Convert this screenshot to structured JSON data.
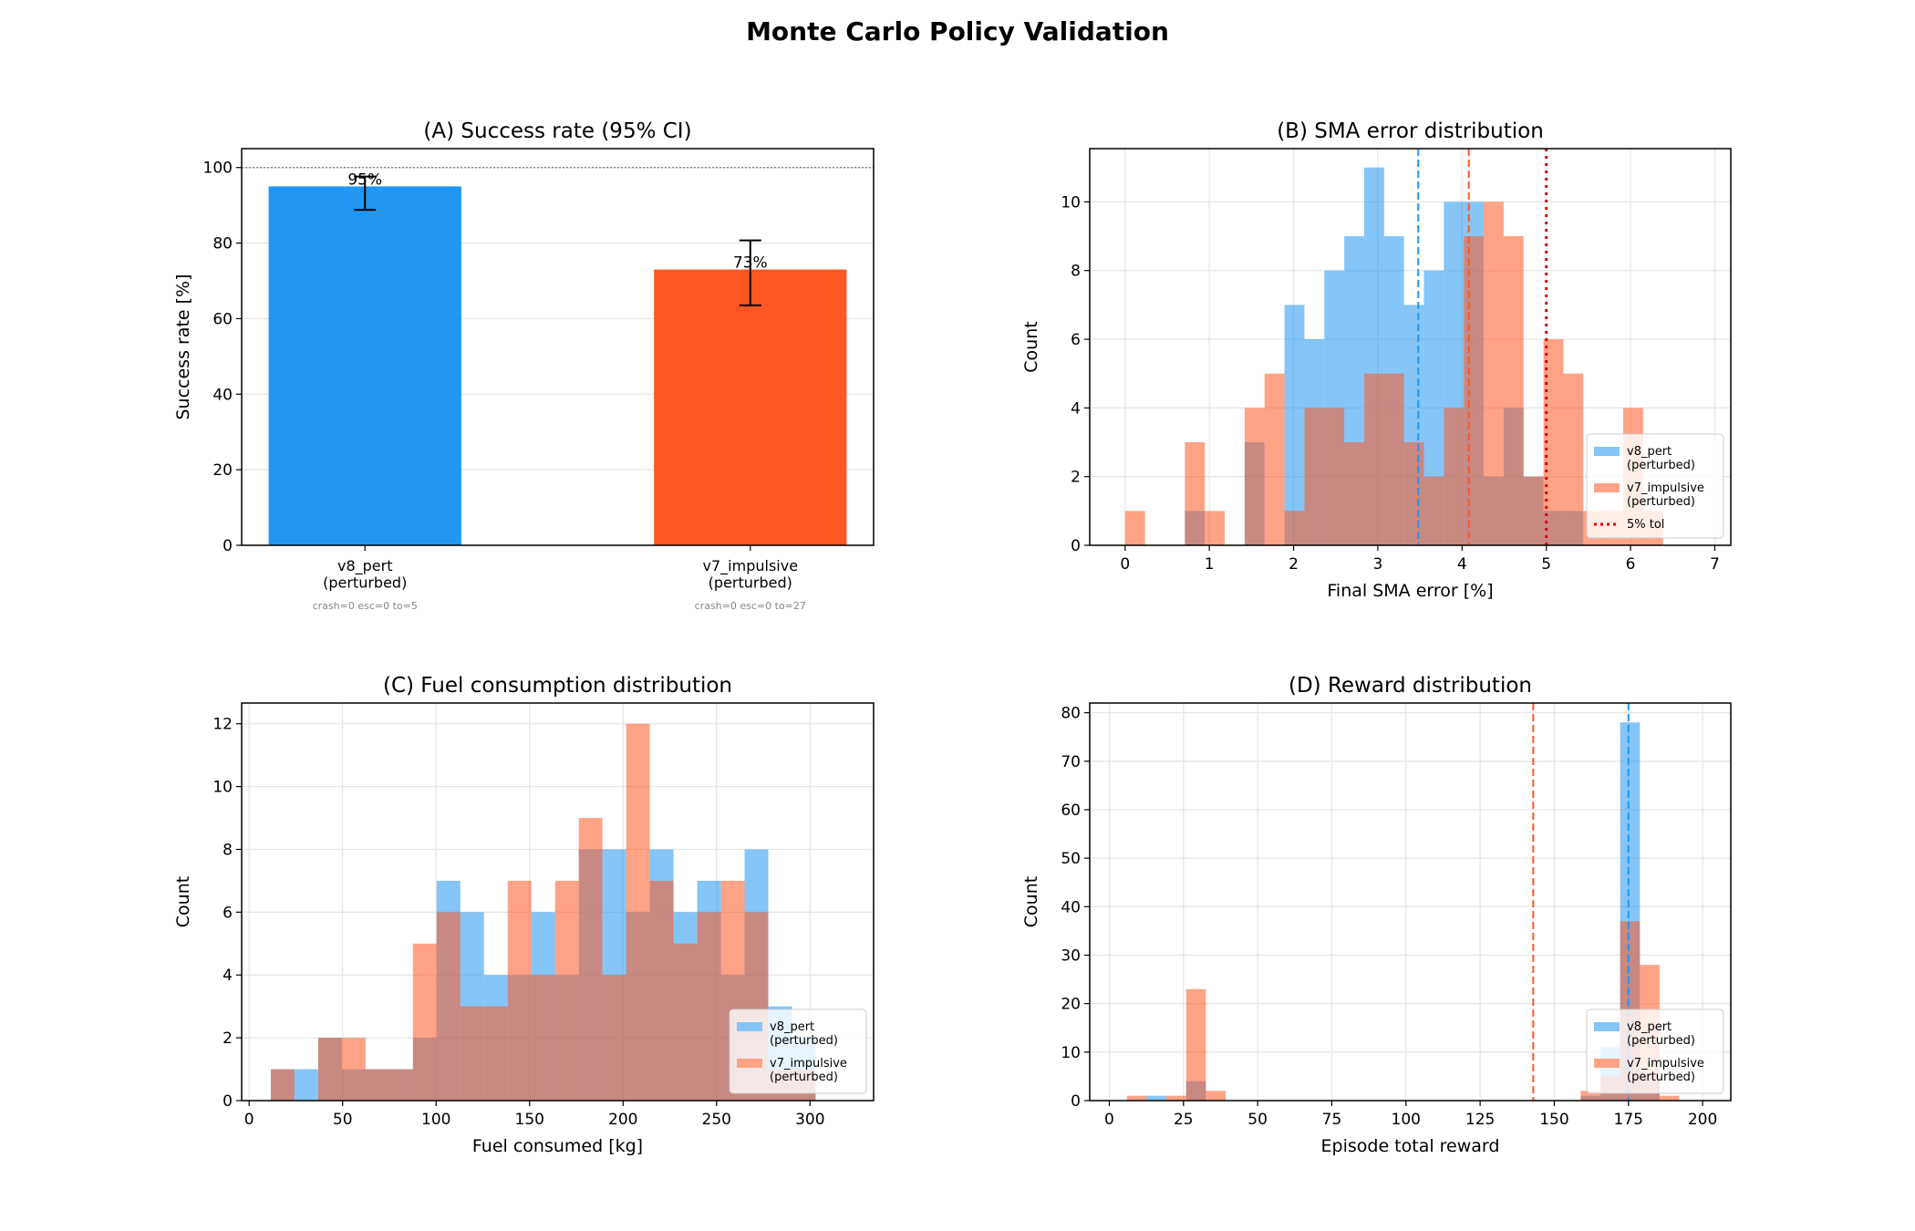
{
  "suptitle": "Monte Carlo Policy Validation",
  "colors": {
    "v8": "#2196F3",
    "v7": "#FF5722",
    "tol": "#E00000"
  },
  "chart_data": [
    {
      "type": "bar",
      "title": "(A) Success rate  (95% CI)",
      "xlabel": "",
      "ylabel": "Success rate [%]",
      "xlim": [
        -0.32,
        1.32
      ],
      "ylim": [
        0,
        105
      ],
      "yticks": [
        0,
        20,
        40,
        60,
        80,
        100
      ],
      "categories": [
        "v8_pert\n(perturbed)",
        "v7_impulsive\n(perturbed)"
      ],
      "values": [
        95,
        73
      ],
      "ci": [
        [
          88.8,
          97.6
        ],
        [
          63.5,
          80.7
        ]
      ],
      "value_labels": [
        "95%",
        "73%"
      ],
      "notes": [
        "crash=0 esc=0 to=5",
        "crash=0 esc=0 to=27"
      ],
      "reference_line": 100,
      "bar_colors": [
        "#2196F3",
        "#FF5722"
      ]
    },
    {
      "type": "histogram",
      "title": "(B) SMA error distribution",
      "xlabel": "Final SMA error [%]",
      "ylabel": "Count",
      "xlim": [
        -0.42,
        7.19
      ],
      "ylim": [
        0,
        11.55
      ],
      "xticks": [
        0,
        1,
        2,
        3,
        4,
        5,
        6,
        7
      ],
      "yticks": [
        0,
        2,
        4,
        6,
        8,
        10
      ],
      "bin_start": 0,
      "bin_width": 0.2365,
      "series": [
        {
          "name": "v8_pert\n(perturbed)",
          "color": "#2196F3",
          "counts": [
            0,
            0,
            0,
            1,
            0,
            0,
            3,
            0,
            7,
            6,
            8,
            9,
            11,
            9,
            7,
            8,
            10,
            10,
            2,
            4,
            2,
            1,
            1,
            0,
            0,
            0,
            0,
            0
          ]
        },
        {
          "name": "v7_impulsive\n(perturbed)",
          "color": "#FF5722",
          "counts": [
            1,
            0,
            0,
            3,
            1,
            0,
            4,
            5,
            1,
            4,
            4,
            3,
            5,
            5,
            3,
            2,
            4,
            9,
            10,
            9,
            2,
            6,
            5,
            1,
            1,
            4,
            1,
            0
          ]
        }
      ],
      "vlines": [
        {
          "x": 3.48,
          "color": "#2196F3",
          "style": "dashed"
        },
        {
          "x": 4.08,
          "color": "#FF5722",
          "style": "dashed"
        },
        {
          "x": 5.0,
          "color": "#E00000",
          "style": "dotted",
          "label": "5% tol"
        }
      ]
    },
    {
      "type": "histogram",
      "title": "(C) Fuel consumption distribution",
      "xlabel": "Fuel consumed [kg]",
      "ylabel": "Count",
      "xlim": [
        -4,
        334
      ],
      "ylim": [
        0,
        12.66
      ],
      "xticks": [
        0,
        50,
        100,
        150,
        200,
        250,
        300
      ],
      "yticks": [
        0,
        2,
        4,
        6,
        8,
        10,
        12
      ],
      "bin_start": 11.6,
      "bin_width": 12.67,
      "series": [
        {
          "name": "v8_pert\n(perturbed)",
          "color": "#2196F3",
          "counts": [
            1,
            1,
            2,
            1,
            1,
            1,
            2,
            7,
            6,
            4,
            4,
            6,
            4,
            8,
            8,
            6,
            8,
            6,
            7,
            4,
            8,
            3,
            2
          ]
        },
        {
          "name": "v7_impulsive\n(perturbed)",
          "color": "#FF5722",
          "counts": [
            1,
            0,
            2,
            2,
            1,
            1,
            5,
            6,
            3,
            3,
            7,
            4,
            7,
            9,
            4,
            12,
            7,
            5,
            6,
            7,
            6,
            1,
            1
          ]
        }
      ],
      "vlines": []
    },
    {
      "type": "histogram",
      "title": "(D) Reward distribution",
      "xlabel": "Episode total reward",
      "ylabel": "Count",
      "xlim": [
        -6.6,
        209.5
      ],
      "ylim": [
        0,
        82
      ],
      "xticks": [
        0,
        25,
        50,
        75,
        100,
        125,
        150,
        175,
        200
      ],
      "yticks": [
        0,
        10,
        20,
        30,
        40,
        50,
        60,
        70,
        80
      ],
      "bin_start": 5.95,
      "bin_width": 6.65,
      "series": [
        {
          "name": "v8_pert\n(perturbed)",
          "color": "#2196F3",
          "counts": [
            0,
            1,
            0,
            4,
            0,
            0,
            0,
            0,
            0,
            0,
            0,
            0,
            0,
            0,
            0,
            0,
            0,
            0,
            0,
            0,
            0,
            0,
            0,
            1,
            11,
            78,
            5,
            0
          ]
        },
        {
          "name": "v7_impulsive\n(perturbed)",
          "color": "#FF5722",
          "counts": [
            1,
            0,
            1,
            23,
            2,
            0,
            0,
            0,
            0,
            0,
            0,
            0,
            0,
            0,
            0,
            0,
            0,
            0,
            0,
            0,
            0,
            0,
            0,
            2,
            5,
            37,
            28,
            1
          ]
        }
      ],
      "vlines": [
        {
          "x": 142.9,
          "color": "#FF5722",
          "style": "dashed"
        },
        {
          "x": 175.0,
          "color": "#2196F3",
          "style": "dashed"
        }
      ]
    }
  ]
}
